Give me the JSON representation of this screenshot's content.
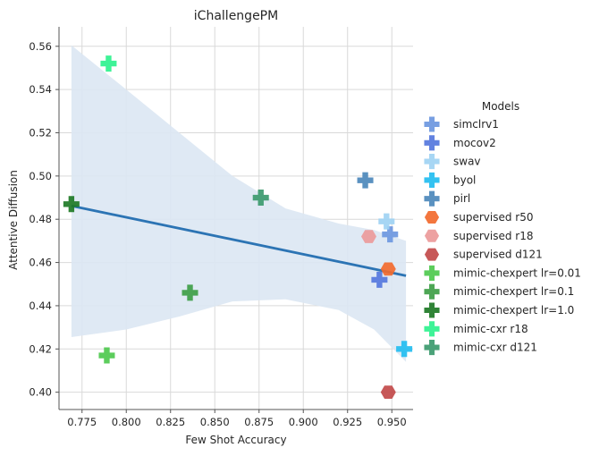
{
  "chart_data": {
    "type": "scatter",
    "title": "iChallengePM",
    "xlabel": "Few Shot Accuracy",
    "ylabel": "Attentive Diffusion",
    "xlim": [
      0.762,
      0.962
    ],
    "ylim": [
      0.392,
      0.569
    ],
    "xticks": [
      0.775,
      0.8,
      0.825,
      0.85,
      0.875,
      0.9,
      0.925,
      0.95
    ],
    "xtick_labels": [
      "0.775",
      "0.800",
      "0.825",
      "0.850",
      "0.875",
      "0.900",
      "0.925",
      "0.950"
    ],
    "yticks": [
      0.4,
      0.42,
      0.44,
      0.46,
      0.48,
      0.5,
      0.52,
      0.54,
      0.56
    ],
    "ytick_labels": [
      "0.40",
      "0.42",
      "0.44",
      "0.46",
      "0.48",
      "0.50",
      "0.52",
      "0.54",
      "0.56"
    ],
    "grid": true,
    "legend": {
      "title": "Models",
      "placement": "right"
    },
    "series": [
      {
        "name": "simclrv1",
        "marker": "plus",
        "color": "#6d97e0",
        "points": [
          [
            0.949,
            0.473
          ]
        ]
      },
      {
        "name": "mocov2",
        "marker": "plus",
        "color": "#5577dd",
        "points": [
          [
            0.943,
            0.452
          ]
        ]
      },
      {
        "name": "swav",
        "marker": "plus",
        "color": "#9fd3f3",
        "points": [
          [
            0.947,
            0.479
          ]
        ]
      },
      {
        "name": "byol",
        "marker": "plus",
        "color": "#23bdf0",
        "points": [
          [
            0.957,
            0.42
          ]
        ]
      },
      {
        "name": "pirl",
        "marker": "plus",
        "color": "#4c88bb",
        "points": [
          [
            0.935,
            0.498
          ]
        ]
      },
      {
        "name": "supervised r50",
        "marker": "hexagon",
        "color": "#f26a2e",
        "points": [
          [
            0.948,
            0.457
          ]
        ]
      },
      {
        "name": "supervised r18",
        "marker": "hexagon",
        "color": "#ec9a9a",
        "points": [
          [
            0.937,
            0.472
          ]
        ]
      },
      {
        "name": "supervised d121",
        "marker": "hexagon",
        "color": "#c24a4a",
        "points": [
          [
            0.948,
            0.4
          ]
        ]
      },
      {
        "name": "mimic-chexpert lr=0.01",
        "marker": "plus",
        "color": "#4ec94e",
        "points": [
          [
            0.789,
            0.417
          ]
        ]
      },
      {
        "name": "mimic-chexpert lr=0.1",
        "marker": "plus",
        "color": "#3e9e47",
        "points": [
          [
            0.836,
            0.446
          ]
        ]
      },
      {
        "name": "mimic-chexpert lr=1.0",
        "marker": "plus",
        "color": "#1e7a26",
        "points": [
          [
            0.769,
            0.487
          ]
        ]
      },
      {
        "name": "mimic-cxr r18",
        "marker": "plus",
        "color": "#2ef28e",
        "points": [
          [
            0.79,
            0.552
          ]
        ]
      },
      {
        "name": "mimic-cxr d121",
        "marker": "plus",
        "color": "#3c9a6e",
        "points": [
          [
            0.876,
            0.49
          ]
        ]
      }
    ],
    "regression": {
      "color": "#2c74b4",
      "line": [
        [
          0.769,
          0.4862
        ],
        [
          0.958,
          0.4539
        ]
      ],
      "ci_band": {
        "color": "#dbe7f3",
        "x": [
          0.769,
          0.8,
          0.83,
          0.86,
          0.89,
          0.92,
          0.94,
          0.958
        ],
        "upper": [
          0.5605,
          0.54,
          0.52,
          0.5,
          0.485,
          0.478,
          0.475,
          0.47
        ],
        "lower": [
          0.4255,
          0.429,
          0.435,
          0.442,
          0.443,
          0.438,
          0.429,
          0.414
        ]
      }
    }
  }
}
